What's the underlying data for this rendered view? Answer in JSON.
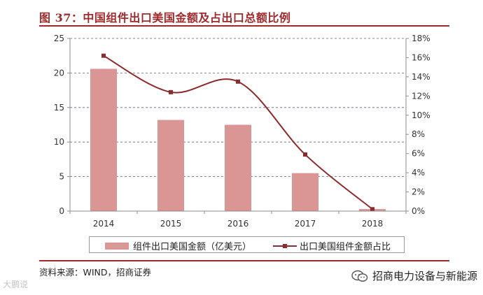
{
  "title": "图 37：中国组件出口美国金额及占出口总额比例",
  "chart_data": {
    "type": "bar+line",
    "categories": [
      "2014",
      "2015",
      "2016",
      "2017",
      "2018"
    ],
    "series": [
      {
        "name": "组件出口美国金额（亿美元）",
        "type": "bar",
        "axis": "left",
        "color": "#d99694",
        "values": [
          20.6,
          13.2,
          12.5,
          5.5,
          0.3
        ]
      },
      {
        "name": "出口美国组件金额占比",
        "type": "line",
        "axis": "right",
        "color": "#8b2b2b",
        "values": [
          16.2,
          12.4,
          13.5,
          5.9,
          0.2
        ]
      }
    ],
    "y_left": {
      "min": 0,
      "max": 25,
      "ticks": [
        "0",
        "5",
        "10",
        "15",
        "20",
        "25"
      ]
    },
    "y_right": {
      "min": 0,
      "max": 18,
      "ticks": [
        "0%",
        "2%",
        "4%",
        "6%",
        "8%",
        "10%",
        "12%",
        "14%",
        "16%",
        "18%"
      ]
    },
    "grid": "dashed"
  },
  "legend": {
    "bar_label": "组件出口美国金额（亿美元）",
    "line_label": "出口美国组件金额占比"
  },
  "source": "资料来源：WIND，招商证券",
  "watermark_left": "大鹏说",
  "watermark_right": "招商电力设备与新能源",
  "icons": {
    "wechat": "wechat-icon"
  }
}
